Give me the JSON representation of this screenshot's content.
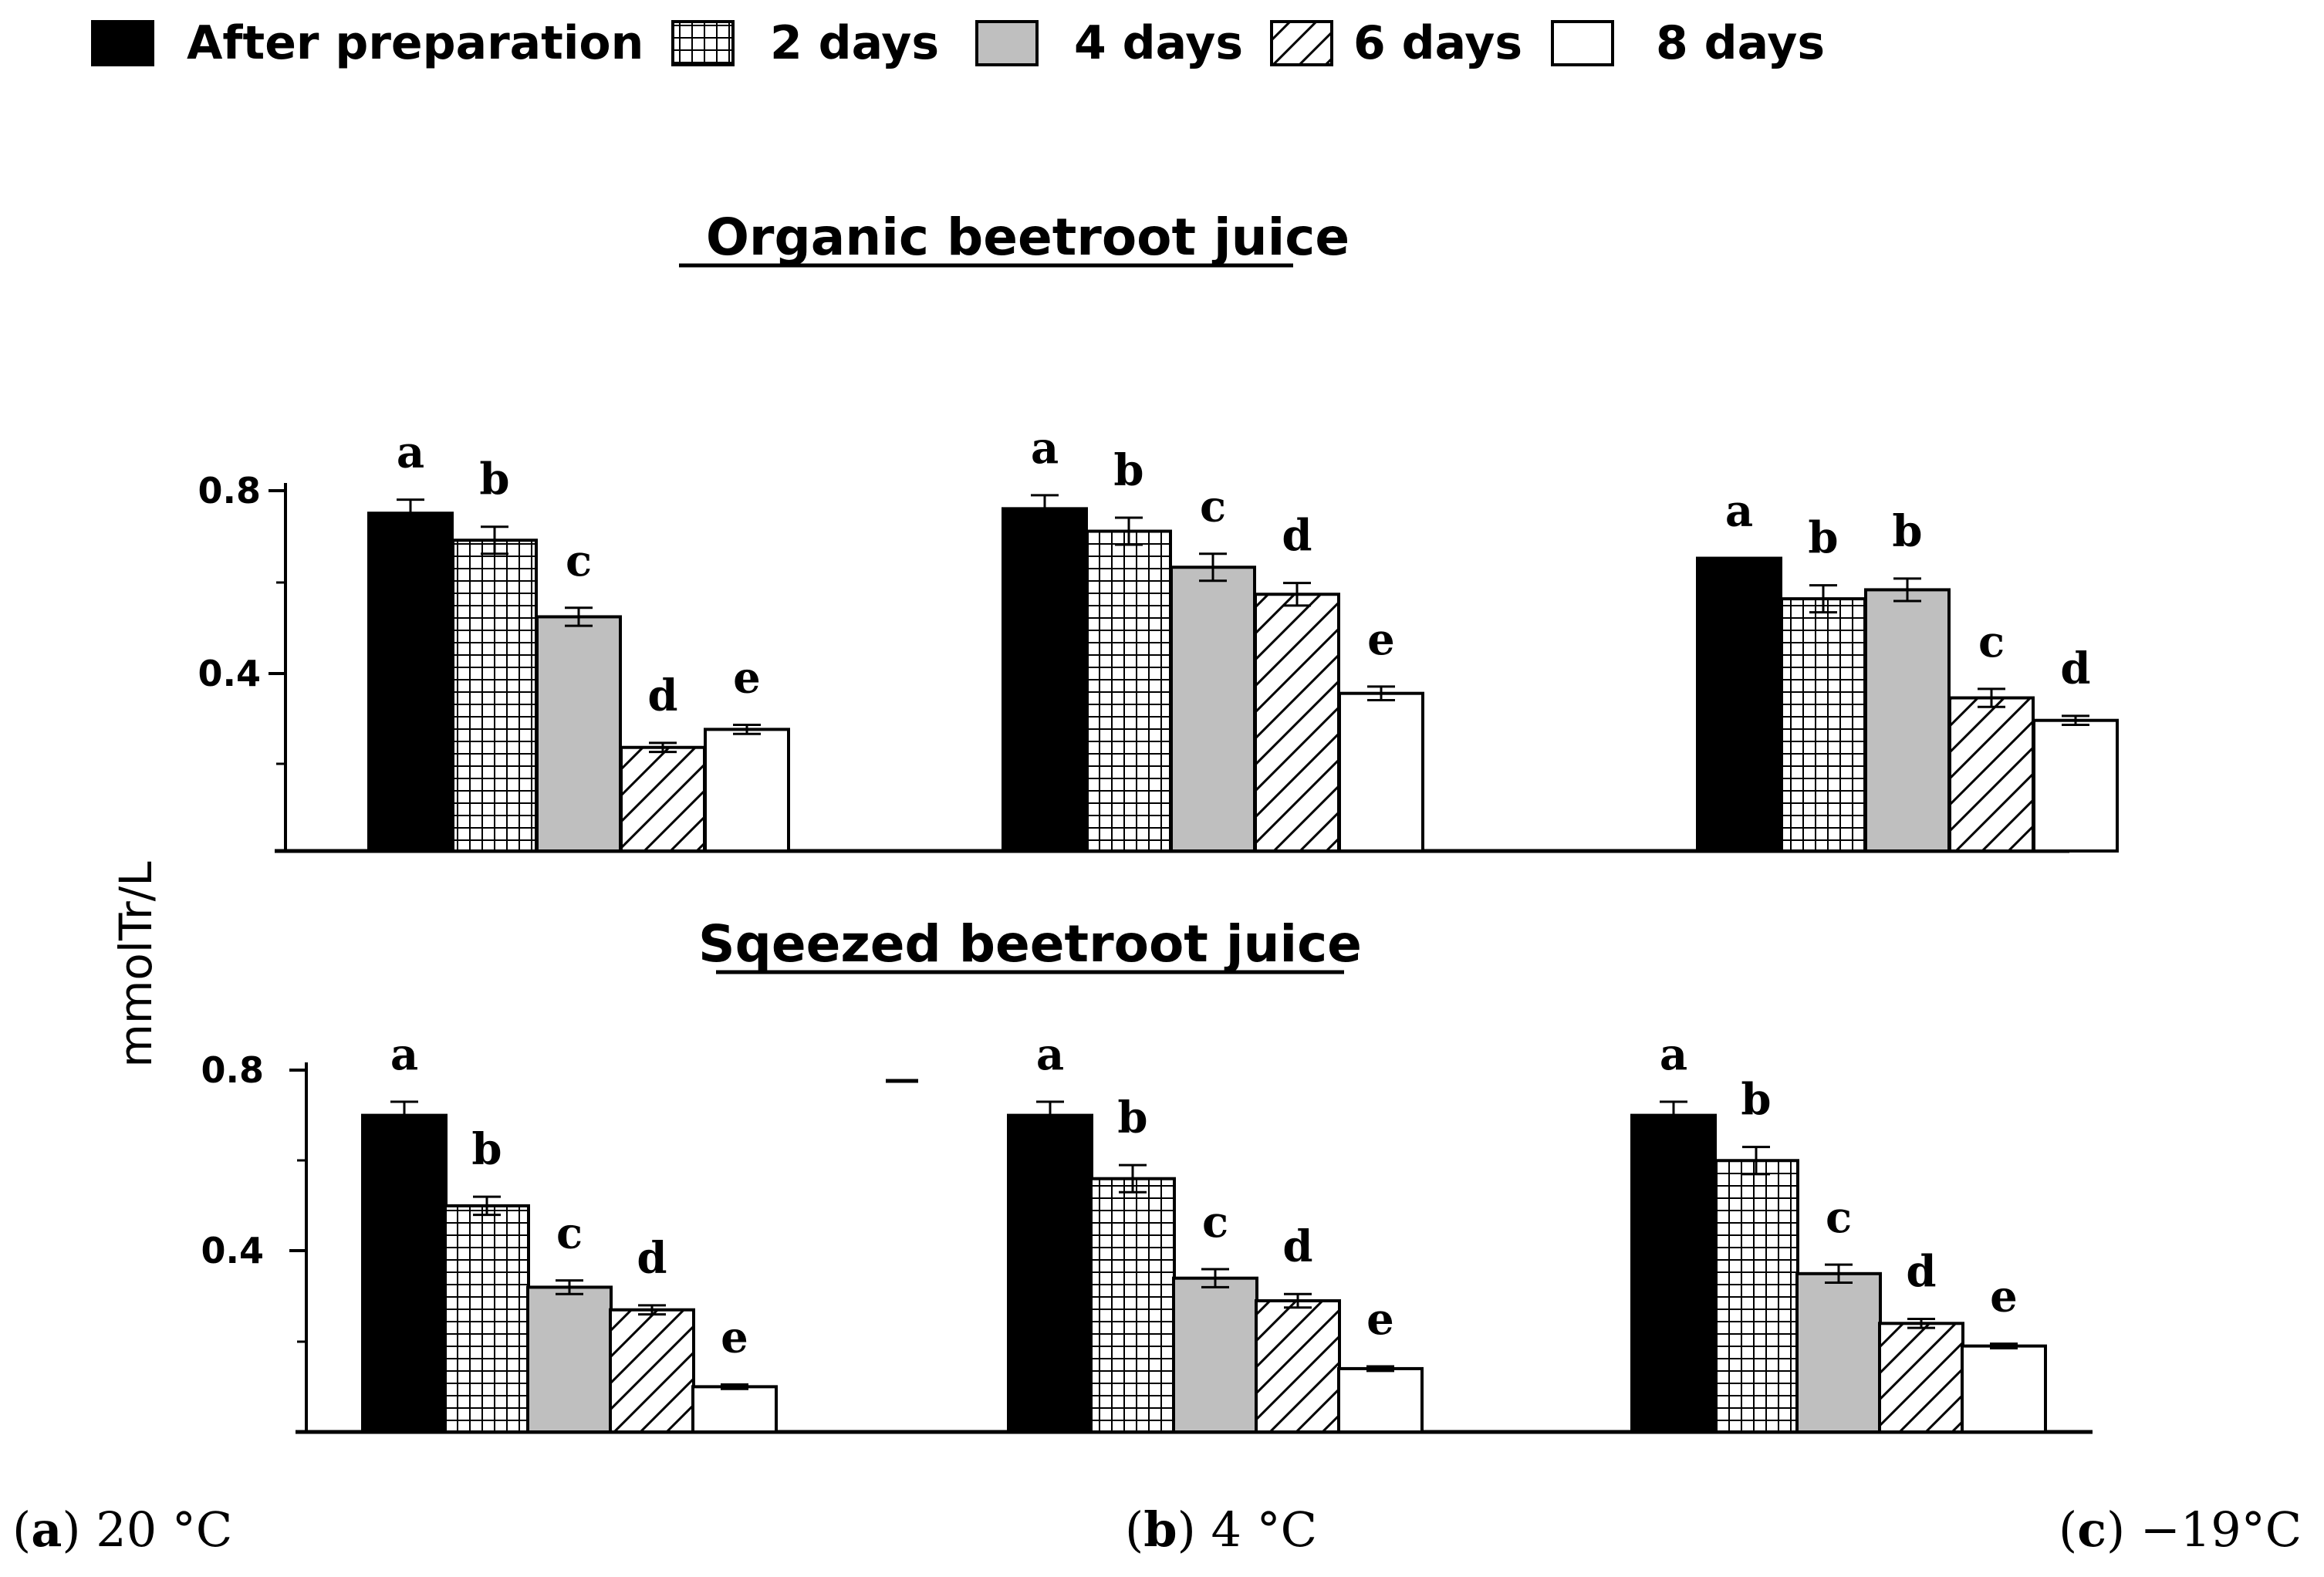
{
  "legend": [
    {
      "label": "After preparation",
      "pattern": "black"
    },
    {
      "label": "2 days",
      "pattern": "grid"
    },
    {
      "label": "4 days",
      "pattern": "gray"
    },
    {
      "label": "6 days",
      "pattern": "hatch"
    },
    {
      "label": "8 days",
      "pattern": "white"
    }
  ],
  "y_axis_label": "mmolTr/L",
  "captions": [
    {
      "letter": "a",
      "text": " 20 °C"
    },
    {
      "letter": "b",
      "text": " 4 °C"
    },
    {
      "letter": "c",
      "text": " −19°C"
    }
  ],
  "colors": {
    "black": "#000000",
    "gray": "#bfbfbf",
    "white": "#ffffff"
  },
  "chart_data": [
    {
      "type": "bar",
      "title": "Organic beetroot juice",
      "ylabel": "mmolTr/L",
      "ylim": [
        0,
        0.8
      ],
      "yticks": [
        0.4,
        0.8
      ],
      "tick_labels": [
        "0.4",
        "0.8"
      ],
      "groups": [
        "20 °C",
        "4 °C",
        "−19°C"
      ],
      "series": [
        {
          "name": "After preparation",
          "values": [
            0.75,
            0.76,
            0.65
          ],
          "errors": [
            0.03,
            0.03,
            0.0
          ]
        },
        {
          "name": "2 days",
          "values": [
            0.69,
            0.71,
            0.56
          ],
          "errors": [
            0.03,
            0.03,
            0.03
          ]
        },
        {
          "name": "4 days",
          "values": [
            0.52,
            0.63,
            0.58
          ],
          "errors": [
            0.02,
            0.03,
            0.025
          ]
        },
        {
          "name": "6 days",
          "values": [
            0.23,
            0.57,
            0.34
          ],
          "errors": [
            0.01,
            0.025,
            0.02
          ]
        },
        {
          "name": "8 days",
          "values": [
            0.27,
            0.35,
            0.29
          ],
          "errors": [
            0.01,
            0.015,
            0.01
          ]
        }
      ],
      "significance": [
        [
          "a",
          "b",
          "c",
          "d",
          "e"
        ],
        [
          "a",
          "b",
          "c",
          "d",
          "e"
        ],
        [
          "a",
          "b",
          "b",
          "c",
          "d"
        ]
      ]
    },
    {
      "type": "bar",
      "title": "Sqeezed beetroot juice",
      "ylabel": "mmolTr/L",
      "ylim": [
        0,
        0.8
      ],
      "yticks": [
        0.4,
        0.8
      ],
      "tick_labels": [
        "0.4",
        "0.8"
      ],
      "groups": [
        "20 °C",
        "4 °C",
        "−19°C"
      ],
      "series": [
        {
          "name": "After preparation",
          "values": [
            0.7,
            0.7,
            0.7
          ],
          "errors": [
            0.03,
            0.03,
            0.03
          ]
        },
        {
          "name": "2 days",
          "values": [
            0.5,
            0.56,
            0.6
          ],
          "errors": [
            0.02,
            0.03,
            0.03
          ]
        },
        {
          "name": "4 days",
          "values": [
            0.32,
            0.34,
            0.35
          ],
          "errors": [
            0.015,
            0.02,
            0.02
          ]
        },
        {
          "name": "6 days",
          "values": [
            0.27,
            0.29,
            0.24
          ],
          "errors": [
            0.01,
            0.015,
            0.01
          ]
        },
        {
          "name": "8 days",
          "values": [
            0.1,
            0.14,
            0.19
          ],
          "errors": [
            0.005,
            0.005,
            0.005
          ]
        }
      ],
      "significance": [
        [
          "a",
          "b",
          "c",
          "d",
          "e"
        ],
        [
          "a",
          "b",
          "c",
          "d",
          "e"
        ],
        [
          "a",
          "b",
          "c",
          "d",
          "e"
        ]
      ]
    }
  ]
}
